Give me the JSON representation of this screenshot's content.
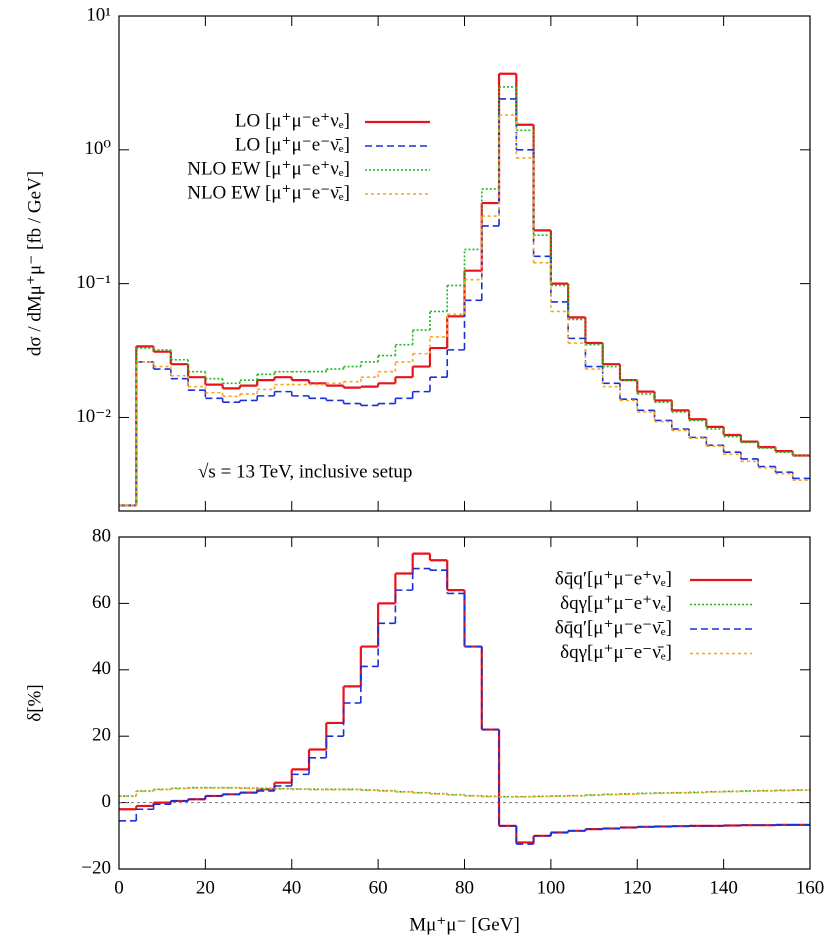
{
  "chart_data": [
    {
      "type": "histogram",
      "log_y": true,
      "legend": "upper left",
      "ylabel": "dσ / dMμ⁺μ⁻  [fb / GeV]",
      "annotation": "√s = 13 TeV, inclusive setup",
      "xlim": [
        0,
        160
      ],
      "ylim": [
        0.002,
        10
      ],
      "yticks": [
        {
          "value": 0.01,
          "label": "10⁻²"
        },
        {
          "value": 0.1,
          "label": "10⁻¹"
        },
        {
          "value": 1,
          "label": "10⁰"
        },
        {
          "value": 10,
          "label": "10¹"
        }
      ],
      "bins": [
        0,
        4,
        8,
        12,
        16,
        20,
        24,
        28,
        32,
        36,
        40,
        44,
        48,
        52,
        56,
        60,
        64,
        68,
        72,
        76,
        80,
        84,
        88,
        92,
        96,
        100,
        104,
        108,
        112,
        116,
        120,
        124,
        128,
        132,
        136,
        140,
        144,
        148,
        152,
        156,
        160
      ],
      "series": [
        {
          "name": "LO  [μ⁺μ⁻e⁺νₑ]",
          "color": "#e8131a",
          "style": "solid",
          "values": [
            0.0022,
            0.034,
            0.031,
            0.025,
            0.02,
            0.0176,
            0.0165,
            0.0173,
            0.019,
            0.02,
            0.019,
            0.018,
            0.0173,
            0.0167,
            0.017,
            0.018,
            0.02,
            0.024,
            0.033,
            0.057,
            0.125,
            0.4,
            3.7,
            1.54,
            0.25,
            0.1,
            0.056,
            0.036,
            0.025,
            0.019,
            0.0156,
            0.0134,
            0.0113,
            0.0097,
            0.0085,
            0.0074,
            0.0066,
            0.006,
            0.0056,
            0.0052
          ]
        },
        {
          "name": "LO  [μ⁺μ⁻e⁻ν̄ₑ]",
          "color": "#1a2fd8",
          "style": "dashed",
          "values": [
            0.0022,
            0.026,
            0.023,
            0.0195,
            0.016,
            0.0139,
            0.013,
            0.0134,
            0.0145,
            0.0156,
            0.0145,
            0.0139,
            0.0134,
            0.0127,
            0.0123,
            0.0127,
            0.0139,
            0.0156,
            0.02,
            0.032,
            0.075,
            0.27,
            2.4,
            1.0,
            0.16,
            0.073,
            0.039,
            0.024,
            0.018,
            0.0137,
            0.0113,
            0.0095,
            0.0082,
            0.0071,
            0.0062,
            0.0055,
            0.0049,
            0.0043,
            0.0039,
            0.0035
          ]
        },
        {
          "name": "NLO EW  [μ⁺μ⁻e⁺νₑ]",
          "color": "#1fb81f",
          "style": "dotted",
          "values": [
            0.0022,
            0.033,
            0.032,
            0.027,
            0.022,
            0.0195,
            0.018,
            0.019,
            0.021,
            0.022,
            0.022,
            0.022,
            0.023,
            0.024,
            0.026,
            0.029,
            0.035,
            0.045,
            0.062,
            0.097,
            0.18,
            0.51,
            2.95,
            1.4,
            0.23,
            0.097,
            0.054,
            0.035,
            0.024,
            0.019,
            0.015,
            0.013,
            0.011,
            0.0095,
            0.0082,
            0.0072,
            0.0065,
            0.0059,
            0.0055,
            0.0052
          ]
        },
        {
          "name": "NLO EW  [μ⁺μ⁻e⁻ν̄ₑ]",
          "color": "#f5a623",
          "style": "short",
          "values": [
            0.0022,
            0.026,
            0.024,
            0.0205,
            0.017,
            0.0153,
            0.0144,
            0.015,
            0.0162,
            0.0176,
            0.0176,
            0.0176,
            0.018,
            0.0185,
            0.02,
            0.022,
            0.026,
            0.03,
            0.04,
            0.059,
            0.107,
            0.32,
            1.82,
            0.87,
            0.143,
            0.062,
            0.036,
            0.023,
            0.017,
            0.0134,
            0.011,
            0.0093,
            0.008,
            0.007,
            0.0061,
            0.0053,
            0.0047,
            0.0042,
            0.0038,
            0.0034
          ]
        }
      ]
    },
    {
      "type": "histogram",
      "log_y": false,
      "legend": "upper right",
      "xlabel": "Mμ⁺μ⁻  [GeV]",
      "ylabel": "δ[%]",
      "reference_line": 0,
      "xlim": [
        0,
        160
      ],
      "xticks": [
        0,
        20,
        40,
        60,
        80,
        100,
        120,
        140,
        160
      ],
      "ylim": [
        -20,
        80
      ],
      "yticks": [
        {
          "value": -20,
          "label": "−20"
        },
        0,
        20,
        40,
        60,
        80
      ],
      "bins": [
        0,
        4,
        8,
        12,
        16,
        20,
        24,
        28,
        32,
        36,
        40,
        44,
        48,
        52,
        56,
        60,
        64,
        68,
        72,
        76,
        80,
        84,
        88,
        92,
        96,
        100,
        104,
        108,
        112,
        116,
        120,
        124,
        128,
        132,
        136,
        140,
        144,
        148,
        152,
        156,
        160
      ],
      "series": [
        {
          "name": "δq̄q′[μ⁺μ⁻e⁺νₑ]",
          "color": "#e8131a",
          "style": "solid",
          "values": [
            -2,
            -1,
            0,
            0.5,
            1,
            2,
            2.5,
            3,
            4,
            6,
            10,
            16,
            24,
            35,
            47,
            60,
            69,
            75,
            73,
            64,
            47,
            22,
            -7,
            -12,
            -10,
            -9,
            -8.5,
            -8,
            -7.8,
            -7.5,
            -7.3,
            -7.2,
            -7.1,
            -7,
            -7,
            -6.9,
            -6.8,
            -6.8,
            -6.7,
            -6.7
          ]
        },
        {
          "name": "δqγ[μ⁺μ⁻e⁺νₑ]",
          "color": "#1fb81f",
          "style": "dotted",
          "values": [
            2,
            3.5,
            4,
            4.3,
            4.5,
            4.5,
            4.5,
            4.4,
            4.3,
            4.2,
            4.1,
            4,
            4,
            4,
            3.8,
            3.6,
            3.3,
            3,
            2.7,
            2.4,
            2.1,
            1.9,
            1.8,
            1.8,
            1.9,
            2,
            2.1,
            2.3,
            2.5,
            2.6,
            2.8,
            2.9,
            3,
            3.1,
            3.3,
            3.4,
            3.5,
            3.6,
            3.7,
            3.8
          ]
        },
        {
          "name": "δq̄q′[μ⁺μ⁻e⁻ν̄ₑ]",
          "color": "#1a2fd8",
          "style": "dashed",
          "values": [
            -5.5,
            -2,
            -0.5,
            0.5,
            1,
            2,
            2.5,
            3,
            3.5,
            5,
            8.5,
            13.5,
            20,
            30,
            41,
            54,
            64,
            70.5,
            70,
            63,
            47,
            22,
            -7,
            -12.5,
            -10,
            -9,
            -8.5,
            -8,
            -7.8,
            -7.5,
            -7.3,
            -7.2,
            -7.1,
            -7,
            -7,
            -6.9,
            -6.8,
            -6.8,
            -6.7,
            -6.7
          ]
        },
        {
          "name": "δqγ[μ⁺μ⁻e⁻ν̄ₑ]",
          "color": "#f5a623",
          "style": "short",
          "values": [
            1.9,
            3.4,
            3.9,
            4.2,
            4.4,
            4.4,
            4.4,
            4.3,
            4.2,
            4.1,
            4,
            3.9,
            3.9,
            3.9,
            3.7,
            3.5,
            3.2,
            2.9,
            2.6,
            2.3,
            2,
            1.8,
            1.7,
            1.7,
            1.8,
            1.9,
            2,
            2.2,
            2.4,
            2.5,
            2.7,
            2.8,
            2.9,
            3,
            3.2,
            3.3,
            3.4,
            3.5,
            3.6,
            3.7
          ]
        }
      ]
    }
  ]
}
